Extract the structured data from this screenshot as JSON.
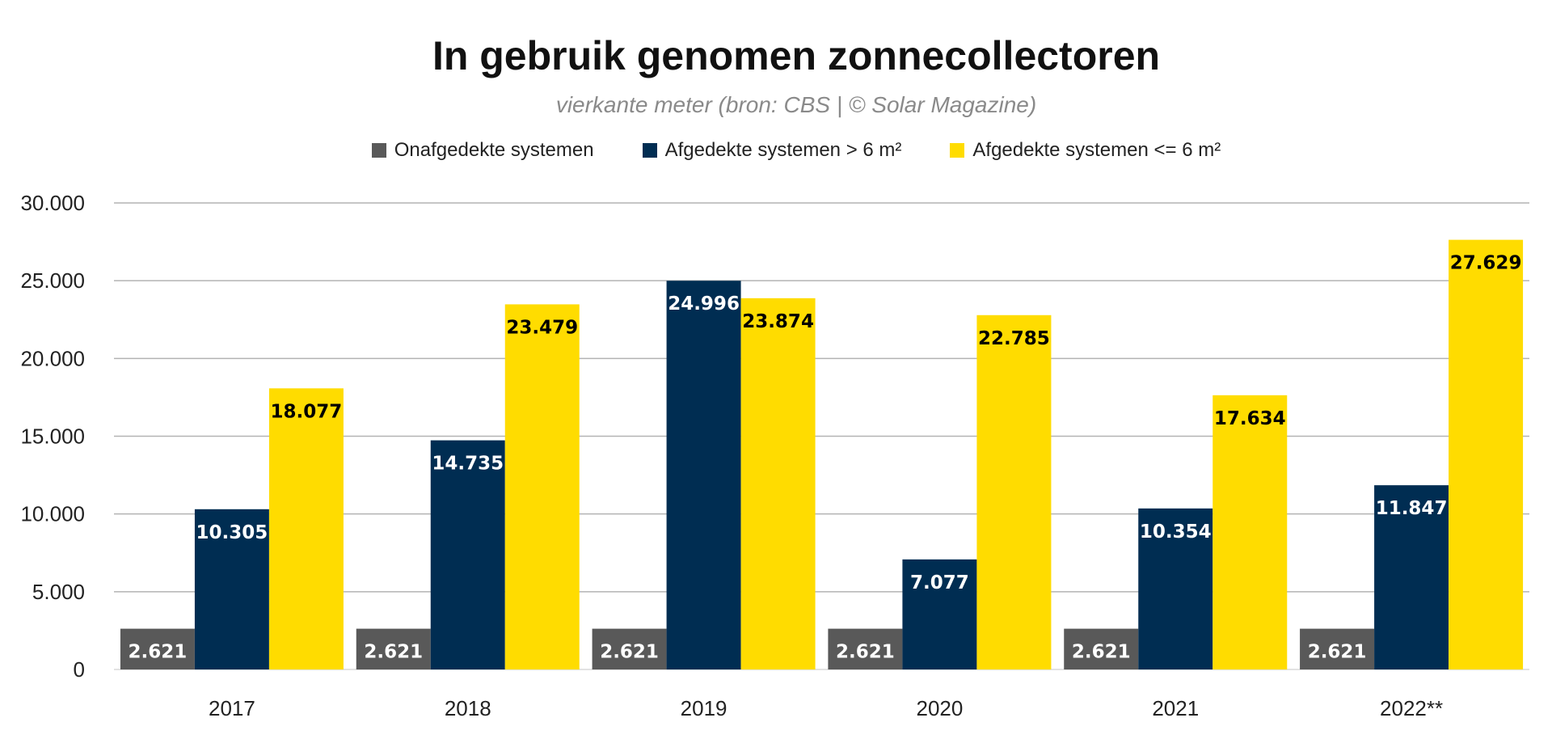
{
  "chart_data": {
    "type": "bar",
    "title": "In gebruik genomen zonnecollectoren",
    "subtitle": "vierkante meter (bron: CBS | © Solar Magazine)",
    "xlabel": "",
    "ylabel": "",
    "ylim": [
      0,
      30000
    ],
    "yticks": [
      0,
      5000,
      10000,
      15000,
      20000,
      25000,
      30000
    ],
    "ytick_labels": [
      "0",
      "5.000",
      "10.000",
      "15.000",
      "20.000",
      "25.000",
      "30.000"
    ],
    "grid": true,
    "legend_position": "top",
    "categories": [
      "2017",
      "2018",
      "2019",
      "2020",
      "2021",
      "2022**"
    ],
    "series": [
      {
        "name": "Onafgedekte systemen",
        "color": "#595959",
        "label_color": "#ffffff",
        "values": [
          2621,
          2621,
          2621,
          2621,
          2621,
          2621
        ],
        "labels": [
          "2.621",
          "2.621",
          "2.621",
          "2.621",
          "2.621",
          "2.621"
        ]
      },
      {
        "name": "Afgedekte systemen > 6 m²",
        "color": "#002d52",
        "label_color": "#ffffff",
        "values": [
          10305,
          14735,
          24996,
          7077,
          10354,
          11847
        ],
        "labels": [
          "10.305",
          "14.735",
          "24.996",
          "7.077",
          "10.354",
          "11.847"
        ]
      },
      {
        "name": "Afgedekte systemen <= 6 m²",
        "color": "#ffdc00",
        "label_color": "#000000",
        "values": [
          18077,
          23479,
          23874,
          22785,
          17634,
          27629
        ],
        "labels": [
          "18.077",
          "23.479",
          "23.874",
          "22.785",
          "17.634",
          "27.629"
        ]
      }
    ]
  }
}
